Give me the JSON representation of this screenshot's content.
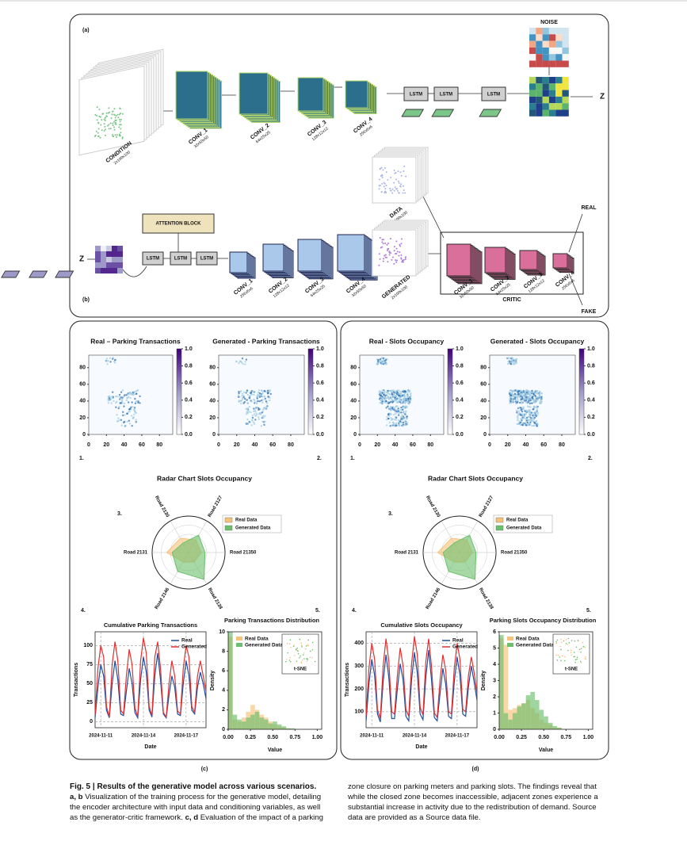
{
  "diagram": {
    "a": {
      "label": "(a)",
      "condition": {
        "name": "CONDITION",
        "size": "2x100x100"
      },
      "convs": [
        {
          "name": "CONV_1",
          "size": "32x50x50"
        },
        {
          "name": "CONV_2",
          "size": "64x25x25"
        },
        {
          "name": "CONV_3",
          "size": "128x12x12"
        },
        {
          "name": "CONV_4",
          "size": "256x6x6"
        }
      ],
      "lstm": [
        "LSTM",
        "LSTM",
        "LSTM"
      ],
      "noise": "NOISE",
      "z": "Z"
    },
    "b": {
      "label": "(b)",
      "z": "Z",
      "attention": "ATTENTION BLOCK",
      "lstm": [
        "LSTM",
        "LSTM",
        "LSTM"
      ],
      "convs": [
        {
          "name": "CONV_1",
          "size": "256x6x6"
        },
        {
          "name": "CONV_2",
          "size": "128x12x12"
        },
        {
          "name": "CONV_3",
          "size": "64x25x25"
        },
        {
          "name": "CONV_4",
          "size": "32x50x50"
        }
      ],
      "data": {
        "name": "DATA",
        "size": "2x100x100"
      },
      "generated": {
        "name": "GENERATED",
        "size": "2x100x100"
      },
      "critic_convs": [
        {
          "name": "CONV_1",
          "size": "32x50x50"
        },
        {
          "name": "CONV_2",
          "size": "64x25x25"
        },
        {
          "name": "CONV_3",
          "size": "128x12x12"
        },
        {
          "name": "CONV_4",
          "size": "256x6x6"
        }
      ],
      "critic": "CRITIC",
      "real": "REAL",
      "fake": "FAKE"
    }
  },
  "panels": [
    {
      "label": "(c)",
      "heatmaps": [
        {
          "title": "Real – Parking Transactions"
        },
        {
          "title": "Generated - Parking Transactions"
        }
      ],
      "heat_lim": [
        0,
        95
      ],
      "heat_xticks": [
        0,
        20,
        40,
        60,
        80
      ],
      "heat_yticks": [
        0,
        20,
        40,
        60,
        80
      ],
      "cbar_lim": [
        0,
        1
      ],
      "cbar_ticks": [
        {
          "value": 0,
          "label": "0.0"
        },
        0.2,
        0.4,
        0.6,
        0.8,
        {
          "value": 1,
          "label": "1.0"
        }
      ],
      "markers": [
        "1.",
        "2.",
        "3.",
        "4.",
        "5."
      ],
      "radar": {
        "title": "Radar Chart Slots Occupancy",
        "axes": [
          "Road 2130",
          "Road 2127",
          "Road 21350",
          "Road 2138",
          "Road 2146",
          "Road 2131"
        ],
        "rlim": [
          0,
          1
        ],
        "series": [
          {
            "name": "Real Data",
            "color": "#f6c27a",
            "values": [
              0.45,
              0.4,
              0.35,
              0.3,
              0.3,
              0.6
            ]
          },
          {
            "name": "Generated Data",
            "color": "#6cbf6c",
            "values": [
              0.3,
              0.55,
              0.45,
              0.85,
              0.6,
              0.45
            ]
          }
        ]
      },
      "line": {
        "title": "Cumulative Parking Transactions",
        "xlabel": "Date",
        "ylabel": "Transactions",
        "xlim": [
          0,
          39
        ],
        "xticks": [
          {
            "value": 2,
            "label": "2024-11-11"
          },
          {
            "value": 17,
            "label": "2024-11-14"
          },
          {
            "value": 32,
            "label": "2024-11-17"
          }
        ],
        "ylim": [
          -8,
          118
        ],
        "yticks": [
          0,
          25,
          50,
          75,
          100
        ],
        "series": [
          {
            "name": "Real",
            "color": "#1f4e9c",
            "values": [
              5,
              45,
              75,
              60,
              15,
              5,
              50,
              80,
              55,
              10,
              8,
              40,
              70,
              50,
              12,
              5,
              55,
              85,
              65,
              15,
              6,
              60,
              90,
              55,
              10,
              5,
              35,
              60,
              45,
              10,
              8,
              50,
              80,
              60,
              15,
              10,
              45,
              65,
              50,
              30
            ]
          },
          {
            "name": "Generated",
            "color": "#e03030",
            "values": [
              8,
              70,
              100,
              85,
              20,
              6,
              75,
              105,
              80,
              15,
              10,
              60,
              95,
              75,
              18,
              7,
              80,
              110,
              90,
              20,
              8,
              85,
              105,
              70,
              12,
              6,
              50,
              80,
              60,
              14,
              10,
              70,
              100,
              85,
              20,
              12,
              60,
              80,
              60,
              40
            ]
          }
        ]
      },
      "hist": {
        "title": "Parking Transactions Distribution",
        "xlabel": "Value",
        "ylabel": "Density",
        "inset": "t-SNE",
        "bins": [
          0,
          0.05,
          0.1,
          0.15,
          0.2,
          0.25,
          0.3,
          0.35,
          0.4,
          0.45,
          0.5,
          0.55,
          0.6,
          0.65,
          0.7,
          0.75,
          0.8,
          0.85,
          0.9,
          0.95,
          1
        ],
        "xlim": [
          0,
          1.05
        ],
        "xticks": [
          {
            "value": 0,
            "label": "0.00"
          },
          0.25,
          {
            "value": 0.5,
            "label": "0.50"
          },
          0.75,
          {
            "value": 1,
            "label": "1.00"
          }
        ],
        "ylim": [
          0,
          10
        ],
        "yticks": [
          0,
          2,
          4,
          6,
          8,
          10
        ],
        "series": [
          {
            "name": "Real Data",
            "color": "#f6c27a",
            "values": [
              9.5,
              1,
              0.8,
              1.2,
              1.8,
              2.5,
              2,
              1.5,
              1.2,
              0.8,
              0.5,
              0.3,
              0.2,
              0.1,
              0,
              0,
              0,
              0,
              0,
              0
            ]
          },
          {
            "name": "Generated Data",
            "color": "#6cbf6c",
            "values": [
              10,
              1.5,
              1,
              0.8,
              1.2,
              1.5,
              1.8,
              1.2,
              1,
              0.6,
              0.8,
              0.5,
              0.3,
              0.1,
              0.1,
              0,
              0,
              0,
              0,
              0
            ]
          }
        ]
      }
    },
    {
      "label": "(d)",
      "heatmaps": [
        {
          "title": "Real - Slots Occupancy"
        },
        {
          "title": "Generated - Slots Occupancy"
        }
      ],
      "heat_lim": [
        0,
        95
      ],
      "heat_xticks": [
        0,
        20,
        40,
        60,
        80
      ],
      "heat_yticks": [
        0,
        20,
        40,
        60,
        80
      ],
      "cbar_lim": [
        0,
        1
      ],
      "cbar_ticks": [
        {
          "value": 0,
          "label": "0.0"
        },
        0.2,
        0.4,
        0.6,
        0.8,
        {
          "value": 1,
          "label": "1.0"
        }
      ],
      "markers": [
        "1.",
        "2.",
        "3.",
        "4.",
        "5."
      ],
      "radar": {
        "title": "Radar Chart Slots Occupancy",
        "axes": [
          "Road 2130",
          "Road 2127",
          "Road 21350",
          "Road 2138",
          "Road 2146",
          "Road 2131"
        ],
        "rlim": [
          0,
          1
        ],
        "series": [
          {
            "name": "Real Data",
            "color": "#f6c27a",
            "values": [
              0.45,
              0.4,
              0.35,
              0.3,
              0.3,
              0.6
            ]
          },
          {
            "name": "Generated Data",
            "color": "#6cbf6c",
            "values": [
              0.3,
              0.55,
              0.45,
              0.85,
              0.6,
              0.45
            ]
          }
        ]
      },
      "line": {
        "title": "Cumulative Slots Occupancy",
        "xlabel": "Date",
        "ylabel": "Transactions",
        "xlim": [
          0,
          39
        ],
        "xticks": [
          {
            "value": 2,
            "label": "2024-11-11"
          },
          {
            "value": 17,
            "label": "2024-11-14"
          },
          {
            "value": 32,
            "label": "2024-11-17"
          }
        ],
        "ylim": [
          30,
          450
        ],
        "yticks": [
          100,
          200,
          300,
          400
        ],
        "series": [
          {
            "name": "Real",
            "color": "#1f4e9c",
            "values": [
              60,
              220,
              330,
              260,
              90,
              55,
              230,
              350,
              250,
              70,
              70,
              200,
              310,
              240,
              80,
              60,
              240,
              360,
              270,
              90,
              65,
              250,
              370,
              240,
              75,
              60,
              180,
              290,
              220,
              80,
              70,
              230,
              340,
              260,
              90,
              80,
              210,
              300,
              230,
              150
            ]
          },
          {
            "name": "Generated",
            "color": "#e03030",
            "values": [
              80,
              290,
              400,
              330,
              110,
              70,
              300,
              420,
              320,
              100,
              90,
              260,
              380,
              300,
              110,
              80,
              310,
              430,
              350,
              120,
              85,
              320,
              420,
              300,
              95,
              75,
              240,
              350,
              280,
              100,
              90,
              290,
              400,
              330,
              110,
              100,
              260,
              340,
              270,
              180
            ]
          }
        ]
      },
      "hist": {
        "title": "Parking Slots Occupancy Distribution",
        "xlabel": "Value",
        "ylabel": "Density",
        "inset": "t-SNE",
        "bins": [
          0,
          0.05,
          0.1,
          0.15,
          0.2,
          0.25,
          0.3,
          0.35,
          0.4,
          0.45,
          0.5,
          0.55,
          0.6,
          0.65,
          0.7,
          0.75,
          0.8,
          0.85,
          0.9,
          0.95,
          1
        ],
        "xlim": [
          0,
          1.05
        ],
        "xticks": [
          {
            "value": 0,
            "label": "0.00"
          },
          0.25,
          {
            "value": 0.5,
            "label": "0.50"
          },
          0.75,
          {
            "value": 1,
            "label": "1.00"
          }
        ],
        "ylim": [
          0,
          6
        ],
        "yticks": [
          0,
          1,
          2,
          3,
          4,
          5,
          6
        ],
        "series": [
          {
            "name": "Real Data",
            "color": "#f6c27a",
            "values": [
              5.6,
              5.2,
              1.2,
              1.3,
              1.5,
              1.6,
              1.8,
              1.3,
              1,
              0.6,
              0.4,
              0.3,
              0.1,
              0.1,
              0,
              0,
              0,
              0,
              0,
              0
            ]
          },
          {
            "name": "Generated Data",
            "color": "#6cbf6c",
            "values": [
              5.8,
              1,
              0.6,
              1,
              1.4,
              1.6,
              2.1,
              2.3,
              1.8,
              1.2,
              0.8,
              0.4,
              0.2,
              0.1,
              0,
              0,
              0,
              0,
              0,
              0
            ]
          }
        ]
      }
    }
  ],
  "caption": {
    "title": "Fig. 5 | Results of the generative model across various scenarios.",
    "bold1": "a, b",
    "text1": " Visualization of the training process for the generative model, detailing the encoder architecture with input data and conditioning variables, as well as the generator-critic framework. ",
    "bold2": "c, d",
    "text2": " Evaluation of the impact of a parking zone closure on parking meters and parking slots. The findings reveal that while the closed zone becomes inaccessible, adjacent zones experience a substantial increase in activity due to the redistribution of demand. Source data are provided as a Source data file."
  }
}
